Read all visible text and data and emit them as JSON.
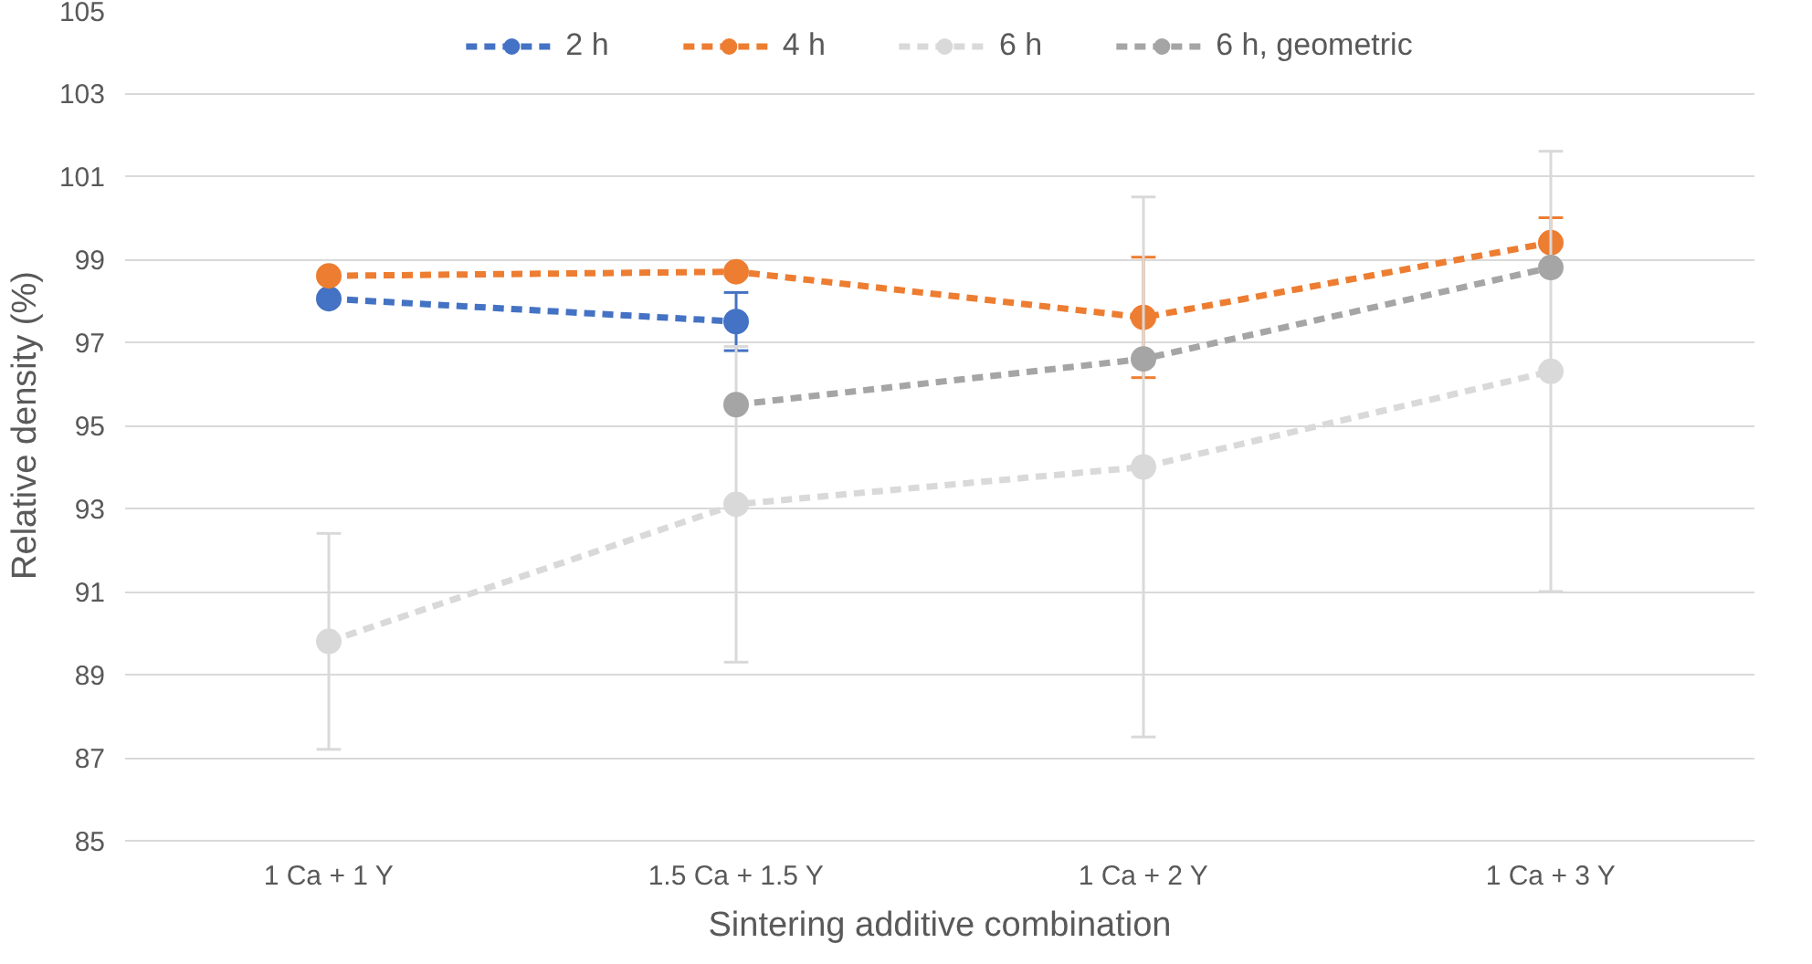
{
  "chart_data": {
    "type": "line",
    "xlabel": "Sintering additive combination",
    "ylabel": "Relative density (%)",
    "categories": [
      "1 Ca + 1 Y",
      "1.5 Ca + 1.5 Y",
      "1 Ca + 2 Y",
      "1 Ca + 3 Y"
    ],
    "series": [
      {
        "name": "2 h",
        "color": "#4472c4",
        "values": [
          98.05,
          97.5,
          null,
          null
        ],
        "errors": [
          null,
          0.7,
          null,
          null
        ]
      },
      {
        "name": "4 h",
        "color": "#ed7d31",
        "values": [
          98.6,
          98.7,
          97.6,
          99.4
        ],
        "errors": [
          null,
          null,
          1.45,
          0.6
        ]
      },
      {
        "name": "6 h",
        "color": "#d9d9d9",
        "values": [
          89.8,
          93.1,
          94.0,
          96.3
        ],
        "errors": [
          2.6,
          3.8,
          6.5,
          5.3
        ]
      },
      {
        "name": "6 h, geometric",
        "color": "#a5a5a5",
        "values": [
          null,
          95.5,
          96.6,
          98.8
        ]
      }
    ],
    "ylim": [
      85,
      105
    ],
    "yticks": [
      85,
      87,
      89,
      91,
      93,
      95,
      97,
      99,
      101,
      103,
      105
    ],
    "grid": "y",
    "legend": "top",
    "marker": "circle",
    "line_style": "dashed"
  }
}
